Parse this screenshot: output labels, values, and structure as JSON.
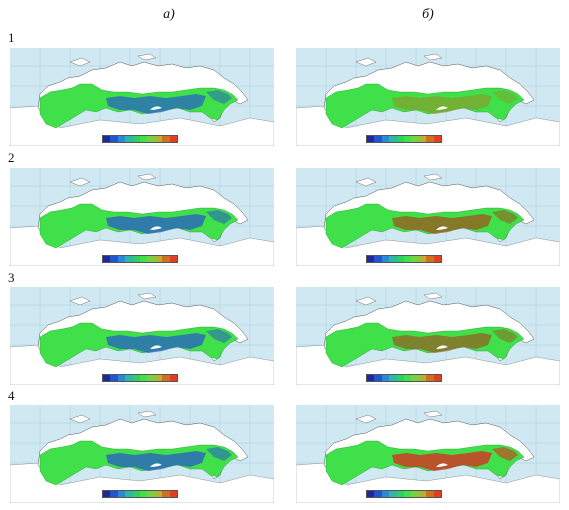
{
  "columns": [
    {
      "label": "а)"
    },
    {
      "label": "б)"
    }
  ],
  "rows": [
    {
      "label": "1"
    },
    {
      "label": "2"
    },
    {
      "label": "3"
    },
    {
      "label": "4"
    }
  ],
  "colors": {
    "ocean": "#cfe8f2",
    "land_outside": "#ffffff",
    "coast": "#555555",
    "grid": "#9cc7d8",
    "green": "#3fe04a",
    "blue": "#2a5fc4",
    "olive": "#8a9a2a",
    "brown": "#9a5a20",
    "red": "#d83020"
  },
  "legend_colors": [
    "#1f2a9a",
    "#2455d0",
    "#2a88d8",
    "#2fb8a0",
    "#2fd060",
    "#3fe04a",
    "#7ad040",
    "#b8b030",
    "#d07020",
    "#e04020"
  ],
  "maps": [
    {
      "id": "1a",
      "accent": "blue",
      "accent_level": 0.45
    },
    {
      "id": "1b",
      "accent": "olive",
      "accent_level": 0.35
    },
    {
      "id": "2a",
      "accent": "blue",
      "accent_level": 0.55
    },
    {
      "id": "2b",
      "accent": "brown",
      "accent_level": 0.55
    },
    {
      "id": "3a",
      "accent": "blue",
      "accent_level": 0.5
    },
    {
      "id": "3b",
      "accent": "brown",
      "accent_level": 0.4
    },
    {
      "id": "4a",
      "accent": "blue",
      "accent_level": 0.55
    },
    {
      "id": "4b",
      "accent": "red",
      "accent_level": 0.6
    }
  ]
}
